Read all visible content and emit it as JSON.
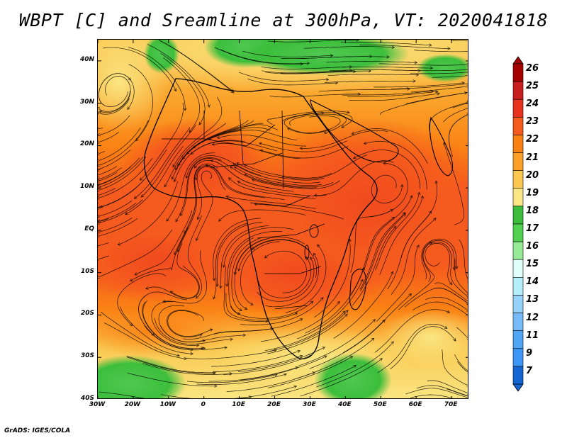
{
  "title": "WBPT [C] and Sreamline at 300hPa, VT: 2020041818",
  "credit": "GrADS: IGES/COLA",
  "map": {
    "lat_labels": [
      "40N",
      "30N",
      "20N",
      "10N",
      "EQ",
      "10S",
      "20S",
      "30S",
      "40S"
    ],
    "lat_values": [
      40,
      30,
      20,
      10,
      0,
      -10,
      -20,
      -30,
      -40
    ],
    "lon_labels": [
      "30W",
      "20W",
      "10W",
      "0",
      "10E",
      "20E",
      "30E",
      "40E",
      "50E",
      "60E",
      "70E"
    ],
    "lon_values": [
      -30,
      -20,
      -10,
      0,
      10,
      20,
      30,
      40,
      50,
      60,
      70
    ],
    "lon_range": [
      -30,
      75
    ],
    "lat_range": [
      -40,
      45
    ]
  },
  "colorbar": {
    "levels": [
      "26",
      "25",
      "24",
      "23",
      "22",
      "21",
      "20",
      "19",
      "18",
      "17",
      "16",
      "15",
      "14",
      "13",
      "12",
      "11",
      "9",
      "7"
    ],
    "colors": [
      "#a40000",
      "#c81e1e",
      "#e6321e",
      "#f55a1e",
      "#fa8214",
      "#faa028",
      "#fac850",
      "#fae682",
      "#3cbe3c",
      "#50d250",
      "#96eb96",
      "#e1fffa",
      "#b4f0fa",
      "#96d2fa",
      "#78b9fa",
      "#50a5f5",
      "#3c96f5",
      "#1464d2"
    ]
  }
}
